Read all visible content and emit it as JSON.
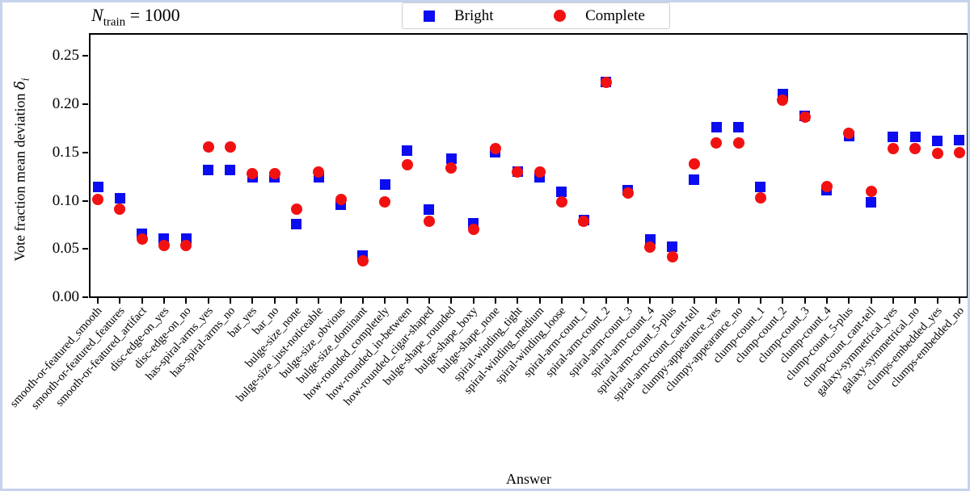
{
  "annotation": {
    "n": "N",
    "sub": "train",
    "rest": " = 1000"
  },
  "legend": {
    "items": [
      {
        "label": "Bright",
        "marker": "square",
        "color": "#0c0cf0"
      },
      {
        "label": "Complete",
        "marker": "circle",
        "color": "#f21111"
      }
    ]
  },
  "ylabel": {
    "text": "Vote fraction mean deviation ",
    "delta": "δ",
    "sub": "i"
  },
  "xlabel": "Answer",
  "colors": {
    "bright": "#0c0cf0",
    "complete": "#f21111",
    "axis": "#000000",
    "figure_border": "#c5d3ec",
    "legend_border": "#cfcfcf"
  },
  "chart_data": {
    "type": "scatter",
    "title_annotation": "N_train = 1000",
    "xlabel": "Answer",
    "ylabel": "Vote fraction mean deviation δ_i",
    "ylim": [
      0,
      0.273
    ],
    "yticks": [
      0,
      0.05,
      0.1,
      0.15,
      0.2,
      0.25
    ],
    "grid": false,
    "legend_position": "top-center",
    "categories": [
      "smooth-or-featured_smooth",
      "smooth-or-featured_features",
      "smooth-or-featured_artifact",
      "disc-edge-on_yes",
      "disc-edge-on_no",
      "has-spiral-arms_yes",
      "has-spiral-arms_no",
      "bar_yes",
      "bar_no",
      "bulge-size_none",
      "bulge-size_just-noticeable",
      "bulge-size_obvious",
      "bulge-size_dominant",
      "how-rounded_completely",
      "how-rounded_in-between",
      "how-rounded_cigar-shaped",
      "bulge-shape_rounded",
      "bulge-shape_boxy",
      "bulge-shape_none",
      "spiral-winding_tight",
      "spiral-winding_medium",
      "spiral-winding_loose",
      "spiral-arm-count_1",
      "spiral-arm-count_2",
      "spiral-arm-count_3",
      "spiral-arm-count_4",
      "spiral-arm-count_5-plus",
      "spiral-arm-count_cant-tell",
      "clumpy-appearance_yes",
      "clumpy-appearance_no",
      "clump-count_1",
      "clump-count_2",
      "clump-count_3",
      "clump-count_4",
      "clump-count_5-plus",
      "clump-count_cant-tell",
      "galaxy-symmetrical_yes",
      "galaxy-symmetrical_no",
      "clumps-embedded_yes",
      "clumps-embedded_no"
    ],
    "series": [
      {
        "name": "Bright",
        "marker": "square",
        "color": "#0c0cf0",
        "values": [
          0.114,
          0.103,
          0.066,
          0.061,
          0.061,
          0.132,
          0.132,
          0.124,
          0.124,
          0.076,
          0.124,
          0.096,
          0.043,
          0.117,
          0.152,
          0.091,
          0.144,
          0.077,
          0.15,
          0.13,
          0.124,
          0.109,
          0.08,
          0.223,
          0.111,
          0.06,
          0.052,
          0.122,
          0.176,
          0.176,
          0.114,
          0.211,
          0.188,
          0.111,
          0.167,
          0.098,
          0.166,
          0.166,
          0.162,
          0.163
        ]
      },
      {
        "name": "Complete",
        "marker": "circle",
        "color": "#f21111",
        "values": [
          0.101,
          0.091,
          0.06,
          0.054,
          0.054,
          0.156,
          0.156,
          0.128,
          0.128,
          0.091,
          0.13,
          0.101,
          0.038,
          0.099,
          0.137,
          0.079,
          0.134,
          0.07,
          0.154,
          0.13,
          0.13,
          0.099,
          0.079,
          0.223,
          0.108,
          0.052,
          0.042,
          0.138,
          0.16,
          0.16,
          0.103,
          0.204,
          0.187,
          0.115,
          0.17,
          0.11,
          0.154,
          0.154,
          0.149,
          0.15
        ]
      }
    ]
  }
}
